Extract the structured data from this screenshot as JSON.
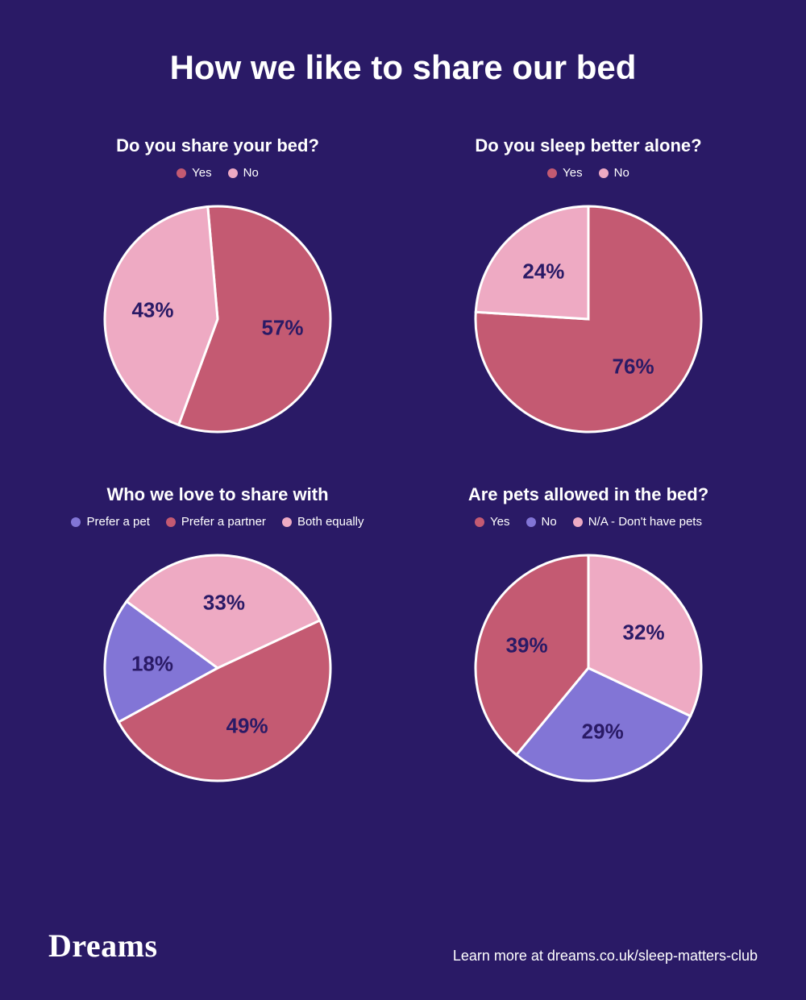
{
  "background_color": "#2a1a66",
  "text_color": "#ffffff",
  "main_title": "How we like to share our bed",
  "main_title_fontsize": 42,
  "panel_title_fontsize": 22,
  "legend_fontsize": 15,
  "slice_label_fontsize": 26,
  "slice_label_color": "#2a1a66",
  "pie_radius": 140,
  "stroke_color": "#ffffff",
  "stroke_width": 3,
  "charts": [
    {
      "title": "Do you share your bed?",
      "type": "pie",
      "rotation": -95,
      "slices": [
        {
          "label": "Yes",
          "value": 57,
          "color": "#c45a72",
          "text": "57%"
        },
        {
          "label": "No",
          "value": 43,
          "color": "#eeaac3",
          "text": "43%"
        }
      ]
    },
    {
      "title": "Do you sleep better alone?",
      "type": "pie",
      "rotation": -90,
      "slices": [
        {
          "label": "Yes",
          "value": 76,
          "color": "#c45a72",
          "text": "76%"
        },
        {
          "label": "No",
          "value": 24,
          "color": "#eeaac3",
          "text": "24%"
        }
      ]
    },
    {
      "title": "Who we love to share with",
      "type": "pie",
      "rotation": -25,
      "slices": [
        {
          "label": "Prefer a pet",
          "value": 18,
          "color": "#8275d6",
          "text": "18%"
        },
        {
          "label": "Prefer a partner",
          "value": 49,
          "color": "#c45a72",
          "text": "49%",
          "legend_order": -1
        },
        {
          "label": "Both equally",
          "value": 33,
          "color": "#eeaac3",
          "text": "33%"
        }
      ],
      "legend_order": [
        0,
        1,
        2
      ],
      "draw_order": [
        1,
        0,
        2
      ],
      "reverse_draw": true
    },
    {
      "title": "Are pets allowed in the bed?",
      "type": "pie",
      "rotation": -90,
      "slices": [
        {
          "label": "Yes",
          "value": 39,
          "color": "#c45a72",
          "text": "39%"
        },
        {
          "label": "No",
          "value": 29,
          "color": "#8275d6",
          "text": "29%"
        },
        {
          "label": "N/A - Don't have pets",
          "value": 32,
          "color": "#eeaac3",
          "text": "32%"
        }
      ],
      "reverse_draw": true
    }
  ],
  "footer": {
    "brand": "Dreams",
    "brand_fontsize": 40,
    "link_text": "Learn more at dreams.co.uk/sleep-matters-club",
    "link_fontsize": 18
  }
}
